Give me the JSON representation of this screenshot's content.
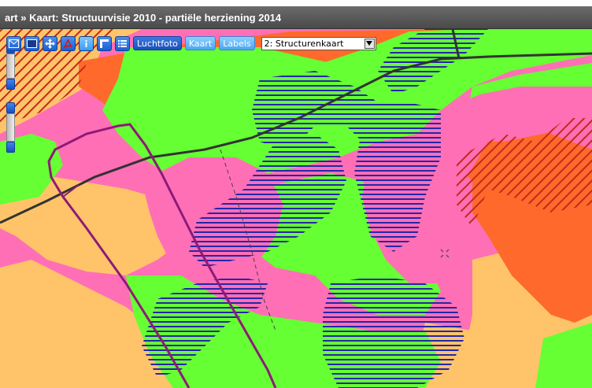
{
  "title": "art  »  Kaart: Structuurvisie 2010 - partiële herziening 2014",
  "toolbar": {
    "icon_buttons": [
      "envelope-icon",
      "select-rectangle-icon",
      "pan-icon",
      "pdf-icon",
      "info-icon",
      "legend-icon",
      "list-icon"
    ],
    "luchtfoto_label": "Luchtfoto",
    "kaart_label": "Kaart",
    "labels_label": "Labels",
    "layer_select_value": "2: Structurenkaart"
  },
  "map": {
    "legend_colors": {
      "orange": "#ff6a2c",
      "pink": "#ff6fb5",
      "green": "#66ff33",
      "light_orange": "#ffc46a",
      "navy_hatch": "#2426a8",
      "red_hatch": "#c22a1a",
      "purple_route": "#8e1a78",
      "dark_line": "#333333"
    }
  }
}
